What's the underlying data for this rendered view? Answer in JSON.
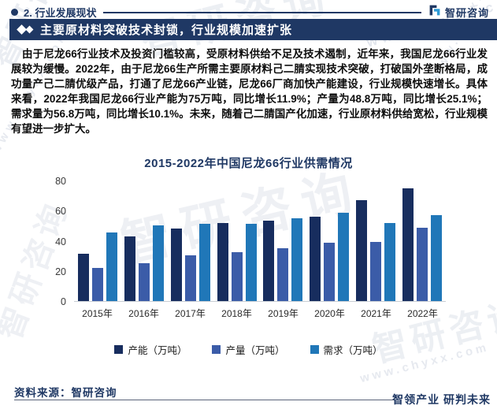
{
  "header": {
    "section_label": "2. 行业发展现状",
    "logo_text": "智研咨询"
  },
  "banner": {
    "title": "主要原材料突破技术封锁，行业规模加速扩张",
    "background_color": "#1f3864"
  },
  "paragraph": "由于尼龙66行业技术及投资门槛较高，受原材料供给不足及技术遏制，近年来，我国尼龙66行业发展较为缓慢。2022年，由于尼龙66生产所需主要原材料己二腈实现技术突破，打破国外垄断格局，成功量产己二腈优级产品，打通了尼龙66产业链，尼龙66厂商加快产能建设，行业规模快速增长。具体来看，2022年我国尼龙66行业产能为75万吨，同比增长11.9%；产量为48.8万吨，同比增长25.1%；需求量为56.8万吨，同比增长10.1%。未来，随着己二腈国产化加速，行业原材料供给宽松，行业规模有望进一步扩大。",
  "chart_data": {
    "type": "bar",
    "title": "2015-2022年中国尼龙66行业供需情况",
    "categories": [
      "2015年",
      "2016年",
      "2017年",
      "2018年",
      "2019年",
      "2020年",
      "2021年",
      "2022年"
    ],
    "series": [
      {
        "name": "产能（万吨）",
        "color": "#172d5e",
        "values": [
          31.5,
          43,
          48,
          52,
          53.5,
          56,
          67,
          75
        ]
      },
      {
        "name": "产量（万吨）",
        "color": "#3b5ca8",
        "values": [
          22,
          25,
          30.5,
          32.5,
          35,
          38.5,
          39,
          48.8
        ]
      },
      {
        "name": "需求（万吨）",
        "color": "#2077b8",
        "values": [
          45.5,
          50,
          51,
          51.5,
          55,
          58.5,
          51.6,
          56.8
        ]
      }
    ],
    "xlabel": "",
    "ylabel": "",
    "ylim": [
      0,
      80
    ],
    "yticks": [
      0,
      20,
      40,
      60,
      80
    ],
    "grid": false,
    "legend_position": "bottom"
  },
  "footer": {
    "source": "资料来源：智研咨询",
    "slogan": "智领产业 研判未来"
  },
  "watermark": {
    "brand": "智研咨询",
    "url": "www.chyxx.com"
  }
}
